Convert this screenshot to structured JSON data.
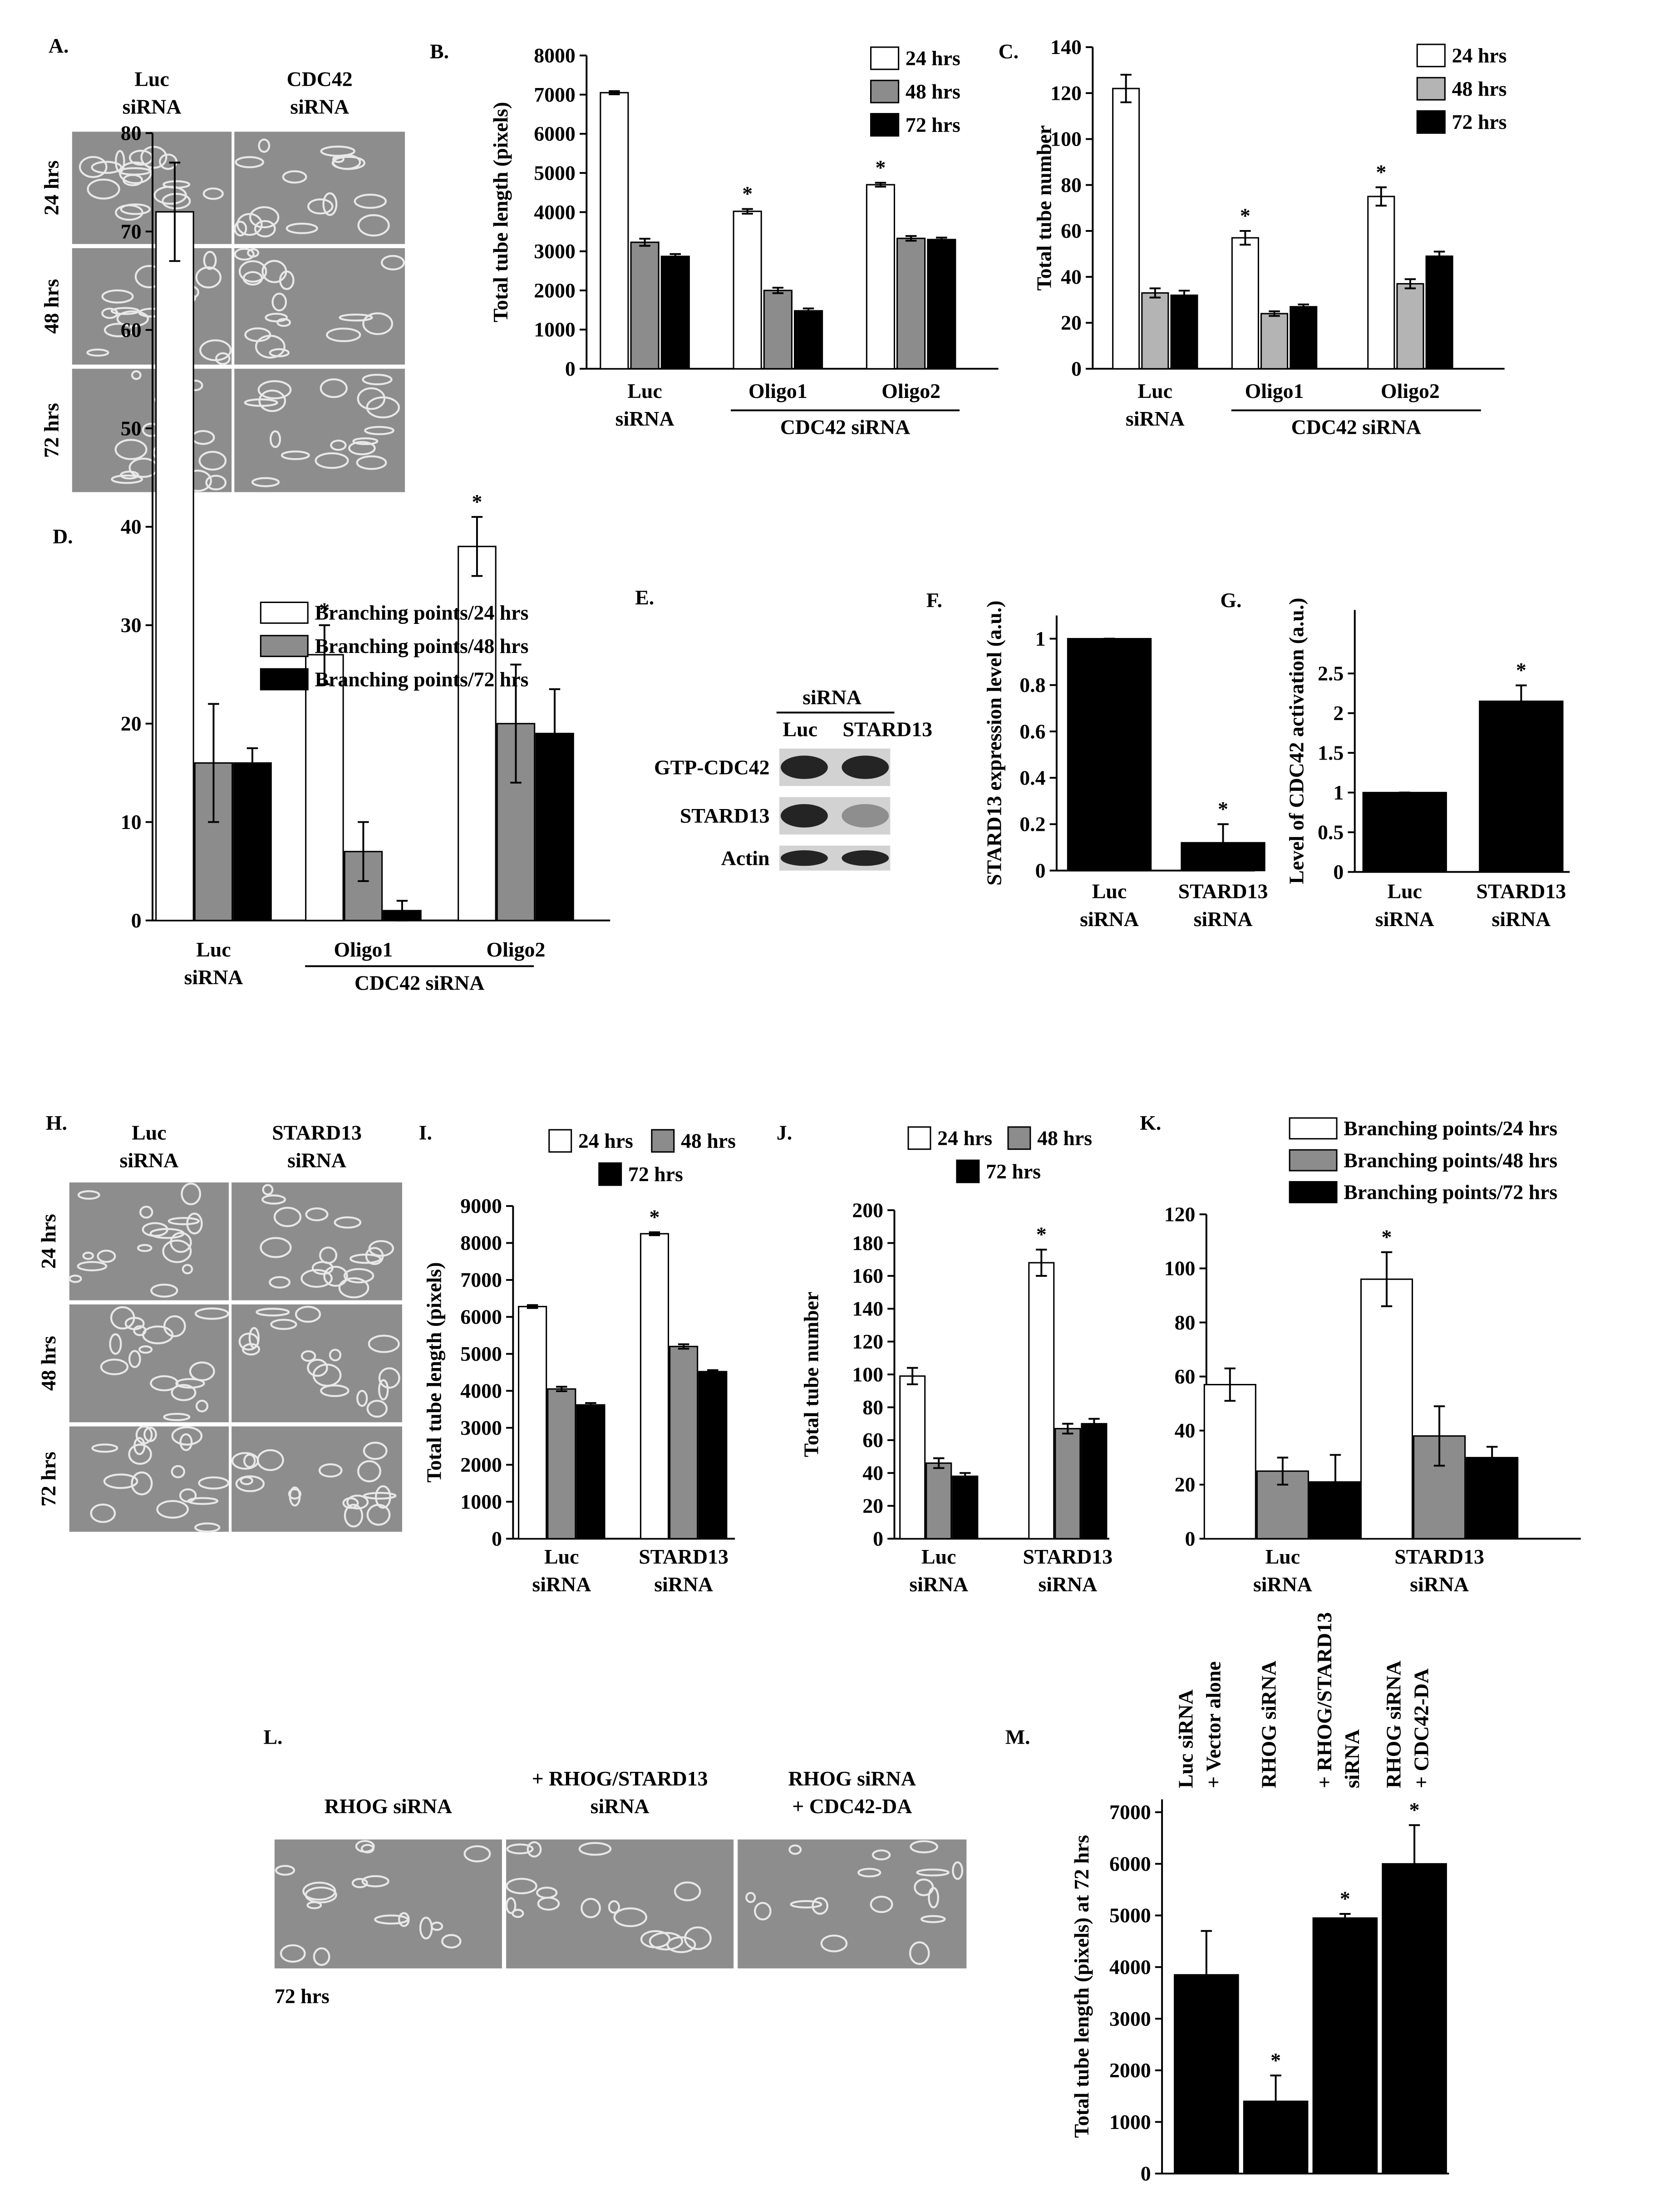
{
  "chart_data": [
    {
      "type": "image",
      "panel": "A.",
      "columns": [
        "Luc siRNA",
        "CDC42 siRNA"
      ],
      "rows": [
        "24 hrs",
        "48 hrs",
        "72 hrs"
      ]
    },
    {
      "type": "bar",
      "panel": "B.",
      "y_label": "Total tube length (pixels)",
      "categories": [
        "Luc siRNA",
        "Oligo1",
        "Oligo2"
      ],
      "group_label": "CDC42 siRNA",
      "ylim": [
        0,
        8000
      ],
      "yticks": [
        0,
        1000,
        2000,
        3000,
        4000,
        5000,
        6000,
        7000,
        8000
      ],
      "series": [
        {
          "name": "24 hrs",
          "color": "#ffffff",
          "values": [
            7050,
            4020,
            4700
          ],
          "errors": [
            40,
            60,
            50
          ],
          "stars": [
            null,
            "*",
            "*"
          ]
        },
        {
          "name": "48 hrs",
          "color": "#8c8c8c",
          "values": [
            3230,
            2000,
            3330
          ],
          "errors": [
            90,
            70,
            60
          ]
        },
        {
          "name": "72 hrs",
          "color": "#000000",
          "values": [
            2870,
            1480,
            3300
          ],
          "errors": [
            60,
            60,
            50
          ]
        }
      ]
    },
    {
      "type": "bar",
      "panel": "C.",
      "y_label": "Total tube number",
      "categories": [
        "Luc siRNA",
        "Oligo1",
        "Oligo2"
      ],
      "group_label": "CDC42 siRNA",
      "ylim": [
        0,
        140
      ],
      "yticks": [
        0,
        20,
        40,
        60,
        80,
        100,
        120,
        140
      ],
      "series": [
        {
          "name": "24 hrs",
          "color": "#ffffff",
          "values": [
            122,
            57,
            75
          ],
          "errors": [
            6,
            3,
            4
          ],
          "stars": [
            null,
            "*",
            "*"
          ]
        },
        {
          "name": "48 hrs",
          "color": "#b4b4b4",
          "values": [
            33,
            24,
            37
          ],
          "errors": [
            2,
            1,
            2
          ]
        },
        {
          "name": "72 hrs",
          "color": "#000000",
          "values": [
            32,
            27,
            49
          ],
          "errors": [
            2,
            1,
            2
          ]
        }
      ]
    },
    {
      "type": "bar",
      "panel": "D.",
      "categories": [
        "Luc siRNA",
        "Oligo1",
        "Oligo2"
      ],
      "group_label": "CDC42 siRNA",
      "ylim": [
        0,
        80
      ],
      "yticks": [
        0,
        10,
        20,
        30,
        40,
        50,
        60,
        70,
        80
      ],
      "series": [
        {
          "name": "Branching points/24 hrs",
          "color": "#ffffff",
          "values": [
            72,
            27,
            38
          ],
          "errors": [
            5,
            3,
            3
          ],
          "stars": [
            null,
            "*",
            "*"
          ]
        },
        {
          "name": "Branching points/48 hrs",
          "color": "#8c8c8c",
          "values": [
            16,
            7,
            20
          ],
          "errors": [
            6,
            3,
            6
          ]
        },
        {
          "name": "Branching points/72 hrs",
          "color": "#000000",
          "values": [
            16,
            1,
            19
          ],
          "errors": [
            1.5,
            1,
            4.5
          ]
        }
      ]
    },
    {
      "type": "blot",
      "panel": "E.",
      "header": "siRNA",
      "columns": [
        "Luc",
        "STARD13"
      ],
      "rows": [
        "GTP-CDC42",
        "STARD13",
        "Actin"
      ]
    },
    {
      "type": "bar",
      "panel": "F.",
      "y_label": "STARD13 expression level (a.u.)",
      "categories": [
        "Luc siRNA",
        "STARD13 siRNA"
      ],
      "values": [
        1,
        0.12
      ],
      "errors": [
        0,
        0.08
      ],
      "stars": [
        null,
        "*"
      ],
      "color": "#000000",
      "ylim": [
        0,
        1.1
      ],
      "yticks": [
        0,
        0.2,
        0.4,
        0.6,
        0.8,
        1
      ]
    },
    {
      "type": "bar",
      "panel": "G.",
      "y_label": "Level of CDC42 activation (a.u.)",
      "categories": [
        "Luc siRNA",
        "STARD13 siRNA"
      ],
      "values": [
        1,
        2.15
      ],
      "errors": [
        0,
        0.2
      ],
      "stars": [
        null,
        "*"
      ],
      "color": "#000000",
      "ylim": [
        0,
        3.3
      ],
      "yticks": [
        0,
        0.5,
        1,
        1.5,
        2,
        2.5
      ]
    },
    {
      "type": "image",
      "panel": "H.",
      "columns": [
        "Luc siRNA",
        "STARD13 siRNA"
      ],
      "rows": [
        "24 hrs",
        "48 hrs",
        "72 hrs"
      ]
    },
    {
      "type": "bar",
      "panel": "I.",
      "y_label": "Total tube length (pixels)",
      "categories": [
        "Luc siRNA",
        "STARD13 siRNA"
      ],
      "ylim": [
        0,
        9000
      ],
      "yticks": [
        0,
        1000,
        2000,
        3000,
        4000,
        5000,
        6000,
        7000,
        8000,
        9000
      ],
      "series": [
        {
          "name": "24 hrs",
          "color": "#ffffff",
          "values": [
            6280,
            8250
          ],
          "errors": [
            40,
            40
          ],
          "stars": [
            null,
            "*"
          ]
        },
        {
          "name": "48 hrs",
          "color": "#8c8c8c",
          "values": [
            4050,
            5200
          ],
          "errors": [
            60,
            60
          ]
        },
        {
          "name": "72 hrs",
          "color": "#000000",
          "values": [
            3620,
            4520
          ],
          "errors": [
            50,
            40
          ]
        }
      ]
    },
    {
      "type": "bar",
      "panel": "J.",
      "y_label": "Total tube number",
      "categories": [
        "Luc siRNA",
        "STARD13 siRNA"
      ],
      "ylim": [
        0,
        200
      ],
      "yticks": [
        0,
        20,
        40,
        60,
        80,
        100,
        120,
        140,
        160,
        180,
        200
      ],
      "series": [
        {
          "name": "24 hrs",
          "color": "#ffffff",
          "values": [
            99,
            168
          ],
          "errors": [
            5,
            8
          ],
          "stars": [
            null,
            "*"
          ]
        },
        {
          "name": "48 hrs",
          "color": "#8c8c8c",
          "values": [
            46,
            67
          ],
          "errors": [
            3,
            3
          ]
        },
        {
          "name": "72 hrs",
          "color": "#000000",
          "values": [
            38,
            70
          ],
          "errors": [
            2,
            3
          ]
        }
      ]
    },
    {
      "type": "bar",
      "panel": "K.",
      "categories": [
        "Luc siRNA",
        "STARD13 siRNA"
      ],
      "ylim": [
        0,
        120
      ],
      "yticks": [
        0,
        20,
        40,
        60,
        80,
        100,
        120
      ],
      "series": [
        {
          "name": "Branching points/24 hrs",
          "color": "#ffffff",
          "values": [
            57,
            96
          ],
          "errors": [
            6,
            10
          ],
          "stars": [
            null,
            "*"
          ]
        },
        {
          "name": "Branching points/48 hrs",
          "color": "#8c8c8c",
          "values": [
            25,
            38
          ],
          "errors": [
            5,
            11
          ]
        },
        {
          "name": "Branching points/72 hrs",
          "color": "#000000",
          "values": [
            21,
            30
          ],
          "errors": [
            10,
            4
          ]
        }
      ]
    },
    {
      "type": "image",
      "panel": "L.",
      "columns": [
        "RHOG siRNA",
        "+ RHOG/STARD13 siRNA",
        "RHOG siRNA + CDC42-DA"
      ],
      "rows": [],
      "caption": "72 hrs"
    },
    {
      "type": "bar",
      "panel": "M.",
      "y_label": "Total tube length (pixels) at 72 hrs",
      "categories": [
        "Luc siRNA + Vector alone",
        "RHOG siRNA",
        "+ RHOG/STARD13 siRNA",
        "RHOG siRNA + CDC42-DA"
      ],
      "values": [
        3850,
        1400,
        4950,
        6000
      ],
      "errors": [
        850,
        500,
        80,
        750
      ],
      "stars": [
        null,
        "*",
        "*",
        "*"
      ],
      "color": "#000000",
      "ylim": [
        0,
        7250
      ],
      "yticks": [
        0,
        1000,
        2000,
        3000,
        4000,
        5000,
        6000,
        7000
      ]
    }
  ]
}
